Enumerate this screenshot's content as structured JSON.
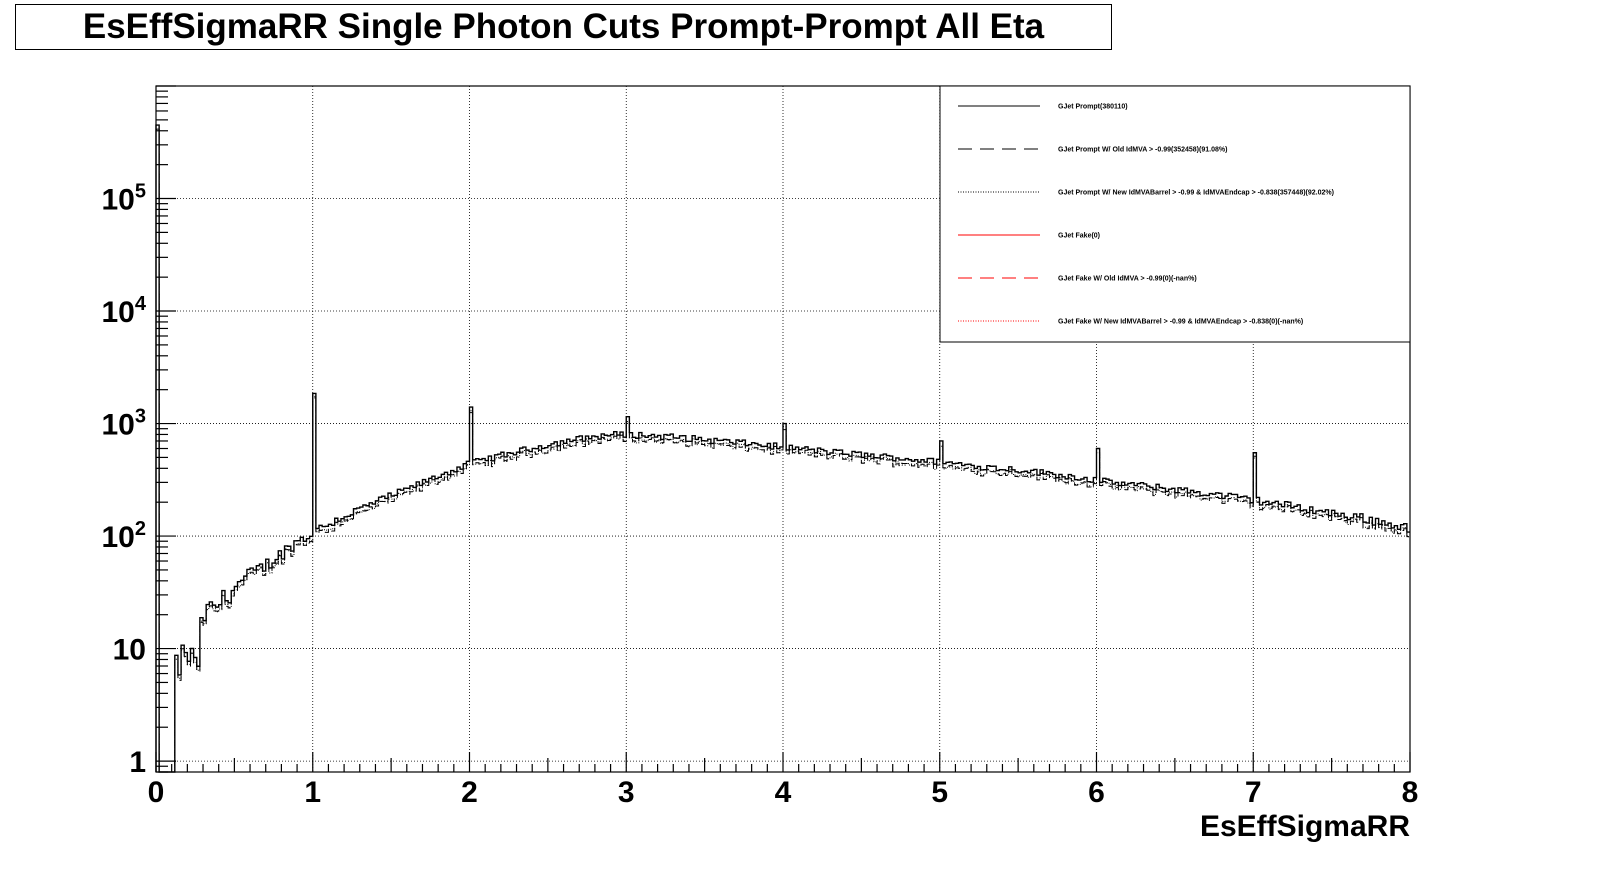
{
  "chart_data": {
    "type": "line",
    "title": "EsEffSigmaRR Single Photon Cuts Prompt-Prompt All Eta",
    "xlabel": "EsEffSigmaRR",
    "ylabel": "",
    "xlim": [
      0,
      8
    ],
    "ylim": [
      0.8,
      1000000
    ],
    "yscale": "log",
    "grid": true,
    "legend_position": "top-right",
    "x_ticks": [
      "0",
      "1",
      "2",
      "3",
      "4",
      "5",
      "6",
      "7",
      "8"
    ],
    "y_ticks": [
      {
        "value": 1,
        "base": "1",
        "exp": ""
      },
      {
        "value": 10,
        "base": "10",
        "exp": ""
      },
      {
        "value": 100,
        "base": "10",
        "exp": "2"
      },
      {
        "value": 1000,
        "base": "10",
        "exp": "3"
      },
      {
        "value": 10000,
        "base": "10",
        "exp": "4"
      },
      {
        "value": 100000,
        "base": "10",
        "exp": "5"
      }
    ],
    "series": [
      {
        "name": "GJet Prompt(380110)",
        "color": "#000000",
        "dash": "solid"
      },
      {
        "name": "GJet Prompt W/ Old IdMVA > -0.99(352458)(91.08%)",
        "color": "#000000",
        "dash": "dashed"
      },
      {
        "name": "GJet Prompt W/ New IdMVABarrel > -0.99 & IdMVAEndcap > -0.838(357448)(92.02%)",
        "color": "#000000",
        "dash": "dotted"
      },
      {
        "name": "GJet Fake(0)",
        "color": "#ff0000",
        "dash": "solid"
      },
      {
        "name": "GJet Fake W/ Old IdMVA > -0.99(0)(-nan%)",
        "color": "#ff0000",
        "dash": "dashed"
      },
      {
        "name": "GJet Fake W/ New IdMVABarrel > -0.99 & IdMVAEndcap > -0.838(0)(-nan%)",
        "color": "#ff0000",
        "dash": "dotted"
      }
    ],
    "bin_width": 0.02,
    "anchors": [
      [
        0.0,
        450000
      ],
      [
        0.02,
        0
      ],
      [
        0.1,
        0
      ],
      [
        0.14,
        7
      ],
      [
        0.2,
        10
      ],
      [
        0.26,
        6
      ],
      [
        0.3,
        20
      ],
      [
        0.4,
        25
      ],
      [
        0.5,
        35
      ],
      [
        0.6,
        45
      ],
      [
        0.7,
        55
      ],
      [
        0.8,
        70
      ],
      [
        0.9,
        90
      ],
      [
        0.98,
        100
      ],
      [
        1.06,
        120
      ],
      [
        1.2,
        150
      ],
      [
        1.4,
        200
      ],
      [
        1.6,
        260
      ],
      [
        1.8,
        340
      ],
      [
        1.98,
        430
      ],
      [
        2.1,
        480
      ],
      [
        2.3,
        560
      ],
      [
        2.5,
        650
      ],
      [
        2.7,
        730
      ],
      [
        2.9,
        800
      ],
      [
        3.1,
        790
      ],
      [
        3.3,
        760
      ],
      [
        3.5,
        720
      ],
      [
        3.7,
        680
      ],
      [
        3.9,
        640
      ],
      [
        4.1,
        600
      ],
      [
        4.3,
        560
      ],
      [
        4.5,
        530
      ],
      [
        4.7,
        500
      ],
      [
        4.9,
        470
      ],
      [
        5.1,
        440
      ],
      [
        5.3,
        410
      ],
      [
        5.5,
        390
      ],
      [
        5.7,
        360
      ],
      [
        5.9,
        330
      ],
      [
        6.1,
        300
      ],
      [
        6.3,
        280
      ],
      [
        6.5,
        260
      ],
      [
        6.7,
        240
      ],
      [
        6.9,
        220
      ],
      [
        7.1,
        200
      ],
      [
        7.3,
        180
      ],
      [
        7.5,
        160
      ],
      [
        7.7,
        145
      ],
      [
        7.9,
        125
      ],
      [
        8.0,
        120
      ]
    ],
    "spikes": [
      {
        "x": 1.0,
        "value": 1850
      },
      {
        "x": 2.0,
        "value": 1400
      },
      {
        "x": 3.0,
        "value": 1150
      },
      {
        "x": 4.0,
        "value": 1000
      },
      {
        "x": 5.0,
        "value": 700
      },
      {
        "x": 6.0,
        "value": 600
      },
      {
        "x": 7.0,
        "value": 550
      }
    ],
    "old_mva_fraction": 0.9108,
    "new_mva_fraction": 0.9202
  }
}
